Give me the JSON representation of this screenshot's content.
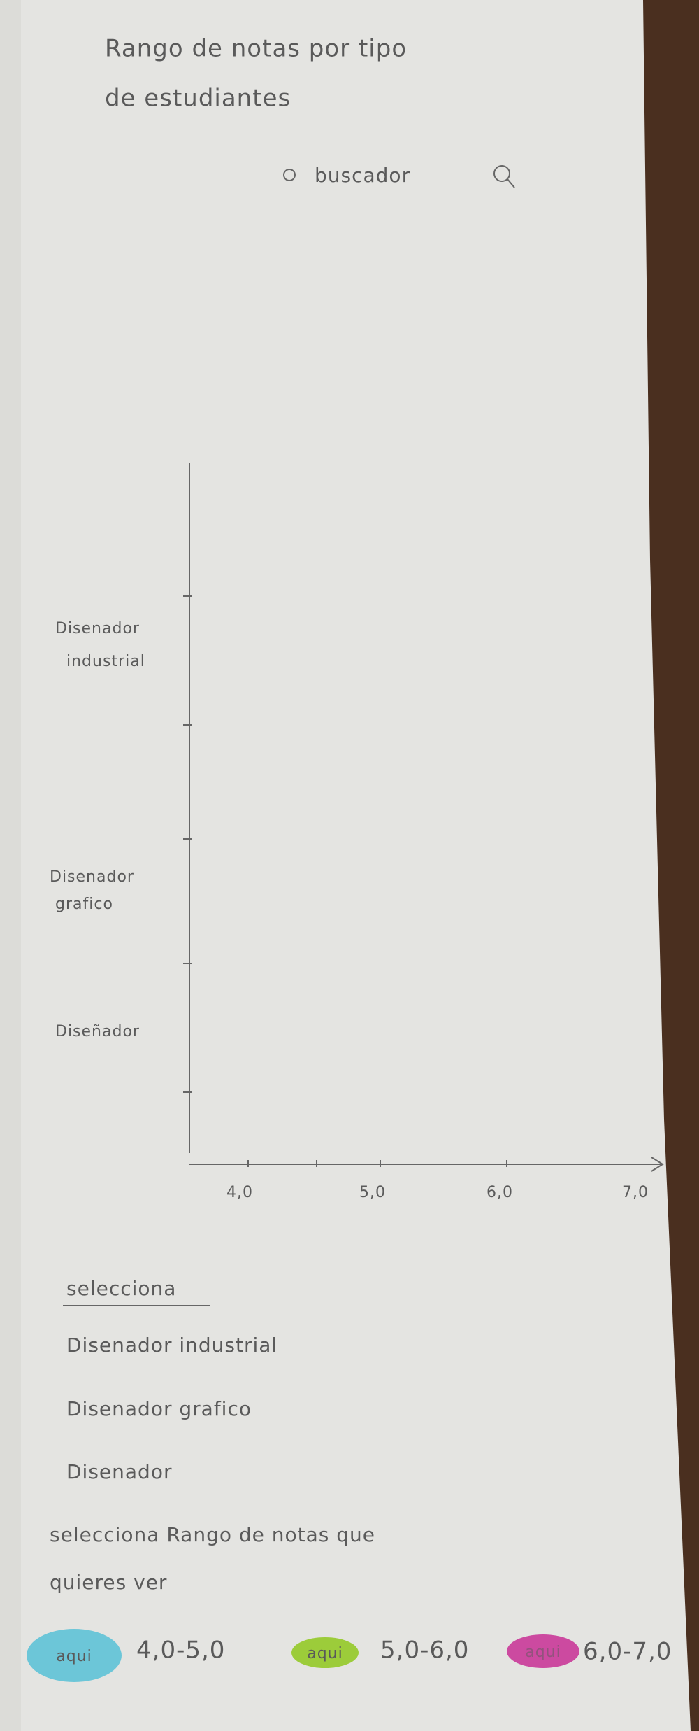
{
  "header": {
    "title_lines": [
      "Rango de notas por tipo",
      "de estudiantes"
    ],
    "search": "buscador"
  },
  "axis": {
    "y_labels": [
      [
        "Disenador",
        "industrial"
      ],
      [
        "Disenador",
        "grafico"
      ],
      [
        "Diseñador"
      ]
    ],
    "x_labels": [
      "4,0",
      "5,0",
      "6,0",
      "7,0"
    ]
  },
  "selection": {
    "heading": "selecciona",
    "options": [
      "Disenador industrial",
      "Disenador grafico",
      "Disenador"
    ]
  },
  "range_prompt": [
    "selecciona Rango de notas que",
    "quieres ver"
  ],
  "ranges": [
    {
      "chip": "aqui",
      "label": "4,0-5,0"
    },
    {
      "chip": "aqui",
      "label": "5,0-6,0"
    },
    {
      "chip": "aqui",
      "label": "6,0-7,0"
    }
  ]
}
